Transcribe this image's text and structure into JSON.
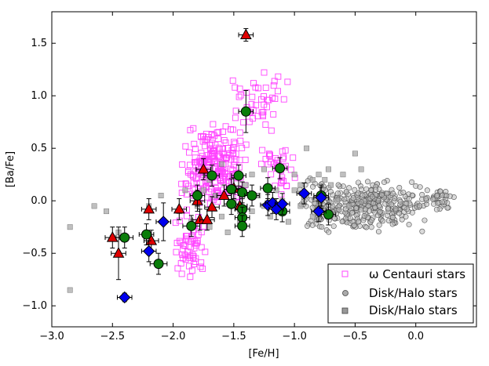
{
  "chart_data": {
    "type": "scatter",
    "xlabel": "[Fe/H]",
    "ylabel": "[Ba/Fe]",
    "xlim": [
      -3.0,
      0.5
    ],
    "ylim": [
      -1.2,
      1.8
    ],
    "xticks": [
      -3.0,
      -2.5,
      -2.0,
      -1.5,
      -1.0,
      -0.5,
      0.0
    ],
    "xtick_labels": [
      "−3.0",
      "−2.5",
      "−2.0",
      "−1.5",
      "−1.0",
      "−0.5",
      "0.0"
    ],
    "yticks": [
      -1.0,
      -0.5,
      0.0,
      0.5,
      1.0,
      1.5
    ],
    "ytick_labels": [
      "−1.0",
      "−0.5",
      "0.0",
      "0.5",
      "1.0",
      "1.5"
    ],
    "colors": {
      "omega_cen": "#ff44ff",
      "disk_circle": "#888888",
      "disk_square": "#9a9a9a",
      "triangle": "#e00000",
      "circle_green": "#0a7d0a",
      "diamond_blue": "#0000ee"
    },
    "legend": {
      "position": "lower-right",
      "entries": [
        {
          "label": "ω Centauri stars",
          "marker": "square-open"
        },
        {
          "label": "Disk/Halo stars",
          "marker": "circle"
        },
        {
          "label": "Disk/Halo stars",
          "marker": "square"
        }
      ]
    },
    "series": [
      {
        "name": "omega_cen_cloud",
        "marker": "square-open",
        "generator": {
          "seed": 7,
          "clusters": [
            {
              "n": 230,
              "x": [
                -1.95,
                -1.35
              ],
              "y": [
                -0.1,
                0.75
              ]
            },
            {
              "n": 60,
              "x": [
                -2.0,
                -1.7
              ],
              "y": [
                -0.75,
                -0.1
              ]
            },
            {
              "n": 45,
              "x": [
                -1.6,
                -1.05
              ],
              "y": [
                0.6,
                1.25
              ]
            },
            {
              "n": 35,
              "x": [
                -1.3,
                -0.95
              ],
              "y": [
                0.0,
                0.6
              ]
            }
          ]
        }
      },
      {
        "name": "disk_halo_circles",
        "marker": "circle",
        "generator": {
          "seed": 21,
          "clusters": [
            {
              "n": 300,
              "x": [
                -0.85,
                0.1
              ],
              "y": [
                -0.3,
                0.2
              ]
            },
            {
              "n": 60,
              "x": [
                -1.0,
                -0.6
              ],
              "y": [
                -0.3,
                0.25
              ]
            },
            {
              "n": 40,
              "x": [
                0.0,
                0.35
              ],
              "y": [
                -0.1,
                0.15
              ]
            }
          ]
        }
      },
      {
        "name": "disk_halo_squares",
        "marker": "square",
        "points": [
          [
            -2.85,
            -0.85
          ],
          [
            -2.85,
            -0.25
          ],
          [
            -2.65,
            -0.05
          ],
          [
            -2.55,
            -0.1
          ],
          [
            -2.5,
            -0.35
          ],
          [
            -2.45,
            -0.3
          ],
          [
            -2.2,
            -0.05
          ],
          [
            -2.1,
            0.05
          ],
          [
            -1.95,
            -0.1
          ],
          [
            -1.9,
            0.1
          ],
          [
            -1.85,
            -0.2
          ],
          [
            -1.8,
            -0.05
          ],
          [
            -1.75,
            0.1
          ],
          [
            -1.7,
            -0.25
          ],
          [
            -1.65,
            0.05
          ],
          [
            -1.6,
            -0.15
          ],
          [
            -1.55,
            -0.3
          ],
          [
            -1.5,
            0.0
          ],
          [
            -1.45,
            -0.2
          ],
          [
            -1.4,
            0.15
          ],
          [
            -1.35,
            -0.1
          ],
          [
            -1.3,
            0.05
          ],
          [
            -1.25,
            -0.05
          ],
          [
            -1.2,
            -0.15
          ],
          [
            -1.15,
            0.1
          ],
          [
            -1.1,
            0.0
          ],
          [
            -1.05,
            -0.2
          ],
          [
            -1.0,
            0.1
          ],
          [
            -0.95,
            0.15
          ],
          [
            -0.9,
            0.05
          ],
          [
            -0.85,
            0.2
          ],
          [
            -0.8,
            0.25
          ],
          [
            -0.75,
            0.2
          ],
          [
            -0.72,
            0.3
          ],
          [
            -0.7,
            0.15
          ],
          [
            -0.65,
            0.0
          ],
          [
            -0.6,
            0.25
          ],
          [
            -0.55,
            -0.05
          ],
          [
            -0.5,
            0.45
          ],
          [
            -0.45,
            0.3
          ],
          [
            -0.9,
            0.5
          ],
          [
            -0.85,
            -0.15
          ],
          [
            -1.6,
            0.35
          ],
          [
            -1.25,
            0.3
          ],
          [
            -1.35,
            0.25
          ],
          [
            -0.95,
            -0.05
          ],
          [
            -1.45,
            -0.1
          ],
          [
            -1.7,
            0.2
          ],
          [
            -1.0,
            0.25
          ],
          [
            -0.8,
            -0.05
          ]
        ]
      },
      {
        "name": "triangles",
        "marker": "triangle",
        "points": [
          {
            "x": -1.4,
            "y": 1.58,
            "xerr": 0.06,
            "yerr": 0.06
          },
          {
            "x": -2.5,
            "y": -0.35,
            "xerr": 0.06,
            "yerr": 0.1
          },
          {
            "x": -2.45,
            "y": -0.5,
            "xerr": 0.06,
            "yerr": 0.25
          },
          {
            "x": -2.2,
            "y": -0.08,
            "xerr": 0.06,
            "yerr": 0.1
          },
          {
            "x": -2.18,
            "y": -0.38,
            "xerr": 0.06,
            "yerr": 0.1
          },
          {
            "x": -1.95,
            "y": -0.08,
            "xerr": 0.06,
            "yerr": 0.1
          },
          {
            "x": -1.8,
            "y": 0.0,
            "xerr": 0.06,
            "yerr": 0.1
          },
          {
            "x": -1.75,
            "y": 0.3,
            "xerr": 0.06,
            "yerr": 0.1
          },
          {
            "x": -1.68,
            "y": -0.06,
            "xerr": 0.06,
            "yerr": 0.1
          },
          {
            "x": -1.78,
            "y": -0.18,
            "xerr": 0.06,
            "yerr": 0.1
          },
          {
            "x": -1.72,
            "y": -0.18,
            "xerr": 0.06,
            "yerr": 0.1
          },
          {
            "x": -1.58,
            "y": 0.05,
            "xerr": 0.06,
            "yerr": 0.1
          },
          {
            "x": -1.5,
            "y": 0.12,
            "xerr": 0.06,
            "yerr": 0.1
          },
          {
            "x": -1.45,
            "y": -0.05,
            "xerr": 0.06,
            "yerr": 0.1
          }
        ]
      },
      {
        "name": "green_circles",
        "marker": "circle-green",
        "points": [
          {
            "x": -1.4,
            "y": 0.85,
            "xerr": 0.06,
            "yerr": 0.2
          },
          {
            "x": -2.4,
            "y": -0.35,
            "xerr": 0.07,
            "yerr": 0.1
          },
          {
            "x": -2.22,
            "y": -0.32,
            "xerr": 0.06,
            "yerr": 0.1
          },
          {
            "x": -2.12,
            "y": -0.6,
            "xerr": 0.07,
            "yerr": 0.1
          },
          {
            "x": -1.85,
            "y": -0.24,
            "xerr": 0.07,
            "yerr": 0.1
          },
          {
            "x": -1.8,
            "y": 0.05,
            "xerr": 0.06,
            "yerr": 0.1
          },
          {
            "x": -1.68,
            "y": 0.24,
            "xerr": 0.06,
            "yerr": 0.1
          },
          {
            "x": -1.52,
            "y": 0.11,
            "xerr": 0.06,
            "yerr": 0.1
          },
          {
            "x": -1.52,
            "y": -0.03,
            "xerr": 0.06,
            "yerr": 0.1
          },
          {
            "x": -1.46,
            "y": 0.24,
            "xerr": 0.06,
            "yerr": 0.1
          },
          {
            "x": -1.43,
            "y": 0.08,
            "xerr": 0.06,
            "yerr": 0.1
          },
          {
            "x": -1.43,
            "y": -0.08,
            "xerr": 0.06,
            "yerr": 0.1
          },
          {
            "x": -1.43,
            "y": -0.16,
            "xerr": 0.06,
            "yerr": 0.1
          },
          {
            "x": -1.43,
            "y": -0.24,
            "xerr": 0.06,
            "yerr": 0.1
          },
          {
            "x": -1.35,
            "y": 0.05,
            "xerr": 0.06,
            "yerr": 0.1
          },
          {
            "x": -1.22,
            "y": 0.12,
            "xerr": 0.06,
            "yerr": 0.1
          },
          {
            "x": -1.12,
            "y": 0.31,
            "xerr": 0.06,
            "yerr": 0.1
          },
          {
            "x": -1.1,
            "y": -0.1,
            "xerr": 0.06,
            "yerr": 0.1
          },
          {
            "x": -0.78,
            "y": 0.05,
            "xerr": 0.06,
            "yerr": 0.1
          },
          {
            "x": -0.72,
            "y": -0.13,
            "xerr": 0.06,
            "yerr": 0.1
          }
        ]
      },
      {
        "name": "blue_diamonds",
        "marker": "diamond",
        "points": [
          {
            "x": -2.4,
            "y": -0.92,
            "xerr": 0.06,
            "yerr": 0.04
          },
          {
            "x": -2.2,
            "y": -0.48,
            "xerr": 0.06,
            "yerr": 0.1
          },
          {
            "x": -2.08,
            "y": -0.2,
            "xerr": 0.06,
            "yerr": 0.18
          },
          {
            "x": -1.22,
            "y": -0.04,
            "xerr": 0.06,
            "yerr": 0.1
          },
          {
            "x": -1.18,
            "y": -0.02,
            "xerr": 0.06,
            "yerr": 0.1
          },
          {
            "x": -1.15,
            "y": -0.08,
            "xerr": 0.06,
            "yerr": 0.1
          },
          {
            "x": -1.1,
            "y": -0.03,
            "xerr": 0.06,
            "yerr": 0.1
          },
          {
            "x": -0.92,
            "y": 0.07,
            "xerr": 0.06,
            "yerr": 0.1
          },
          {
            "x": -0.8,
            "y": -0.1,
            "xerr": 0.06,
            "yerr": 0.1
          },
          {
            "x": -0.78,
            "y": 0.03,
            "xerr": 0.06,
            "yerr": 0.1
          }
        ]
      }
    ]
  }
}
